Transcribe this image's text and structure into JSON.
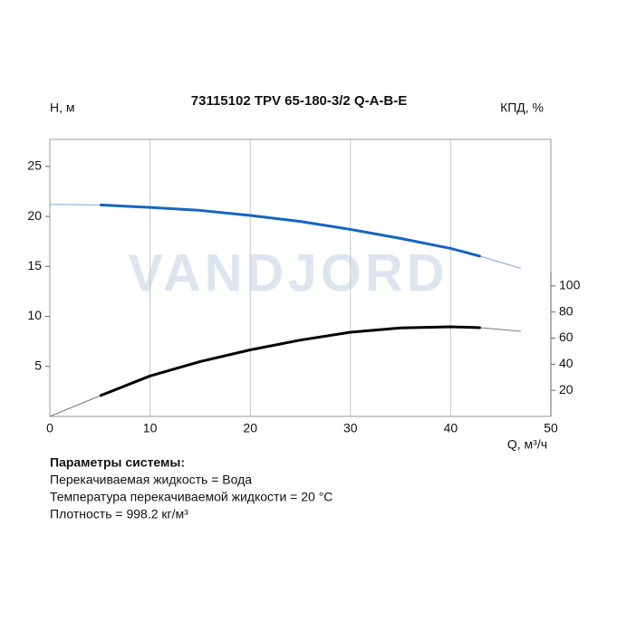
{
  "chart_data": {
    "type": "line",
    "title": "73115102 TPV 65-180-3/2 Q-A-B-E",
    "y_label": "Н, м",
    "y2_label": "КПД, %",
    "x_label": "Q, м³/ч",
    "watermark": "VANDJORD",
    "xlim": [
      0,
      50
    ],
    "xticks": [
      0,
      10,
      20,
      30,
      40,
      50
    ],
    "ylim": [
      0,
      27.7
    ],
    "yticks": [
      5,
      10,
      15,
      20,
      25
    ],
    "y2lim": [
      0,
      111
    ],
    "y2ticks": [
      20,
      40,
      60,
      80,
      100
    ],
    "grid": true,
    "series": [
      {
        "color": "#7fa6d6",
        "line_width": 1,
        "x": [
          0,
          5,
          10,
          15,
          20,
          25,
          30,
          35,
          40,
          43,
          47
        ],
        "values": [
          21.2,
          21.15,
          20.9,
          20.6,
          20.1,
          19.5,
          18.7,
          17.8,
          16.8,
          16.0,
          14.8
        ]
      },
      {
        "color": "#1565c0",
        "line_width": 3,
        "x": [
          5,
          10,
          15,
          20,
          25,
          30,
          35,
          40,
          43
        ],
        "values": [
          21.15,
          20.9,
          20.6,
          20.1,
          19.5,
          18.7,
          17.8,
          16.8,
          16.0
        ]
      },
      {
        "color": "#777777",
        "line_width": 1,
        "axis": "y2",
        "x": [
          0,
          5,
          10,
          15,
          20,
          25,
          30,
          35,
          40,
          43,
          47
        ],
        "values": [
          0,
          15.8,
          31,
          42,
          51,
          58.5,
          64.5,
          67.8,
          68.7,
          68,
          65.2
        ]
      },
      {
        "color": "#000000",
        "line_width": 3,
        "axis": "y2",
        "x": [
          5,
          10,
          15,
          20,
          25,
          30,
          35,
          40,
          43
        ],
        "values": [
          15.8,
          31,
          42,
          51,
          58.5,
          64.5,
          67.8,
          68.7,
          68
        ]
      }
    ]
  },
  "parameters": {
    "heading": "Параметры системы:",
    "lines": [
      "Перекачиваемая жидкость = Вода",
      "Температура перекачиваемой жидкости = 20 °C",
      "Плотность = 998.2 кг/м³"
    ]
  }
}
